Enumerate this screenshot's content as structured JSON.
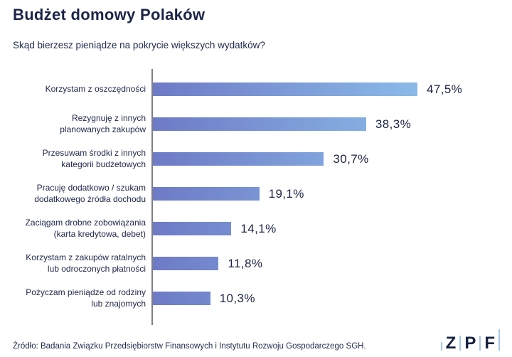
{
  "page": {
    "title": "Budżet domowy Polaków",
    "subtitle": "Skąd bierzesz pieniądze na pokrycie większych wydatków?",
    "source": "Źródło: Badania Związku Przedsiębiorstw Finansowych i Instytutu Rozwoju Gospodarczego SGH.",
    "logo": {
      "letters": [
        "Z",
        "P",
        "F"
      ]
    }
  },
  "chart_data": {
    "type": "bar",
    "orientation": "horizontal",
    "title": "Budżet domowy Polaków",
    "question": "Skąd bierzesz pieniądze na pokrycie większych wydatków?",
    "categories": [
      [
        "Korzystam z oszczędności"
      ],
      [
        "Rezygnuję z innych",
        "planowanych zakupów"
      ],
      [
        "Przesuwam środki z innych",
        "kategorii budżetowych"
      ],
      [
        "Pracuję dodatkowo / szukam",
        "dodatkowego źródła dochodu"
      ],
      [
        "Zaciągam drobne zobowiązania",
        "(karta kredytowa, debet)"
      ],
      [
        "Korzystam z zakupów ratalnych",
        "lub odroczonych płatności"
      ],
      [
        "Pożyczam pieniądze od rodziny",
        "lub znajomych"
      ]
    ],
    "values": [
      47.5,
      38.3,
      30.7,
      19.1,
      14.1,
      11.8,
      10.3
    ],
    "value_labels": [
      "47,5%",
      "38,3%",
      "30,7%",
      "19,1%",
      "14,1%",
      "11,8%",
      "10,3%"
    ],
    "unit": "%",
    "xlim": [
      0,
      47.5
    ],
    "grid": false,
    "legend": false,
    "colors": {
      "bar_gradient_start": "#6e7ac6",
      "bar_gradient_end": "#8abae8",
      "axis_line": "#7d7f85",
      "text": "#1e2a4e",
      "logo_bar": "#a6c7ea"
    }
  }
}
